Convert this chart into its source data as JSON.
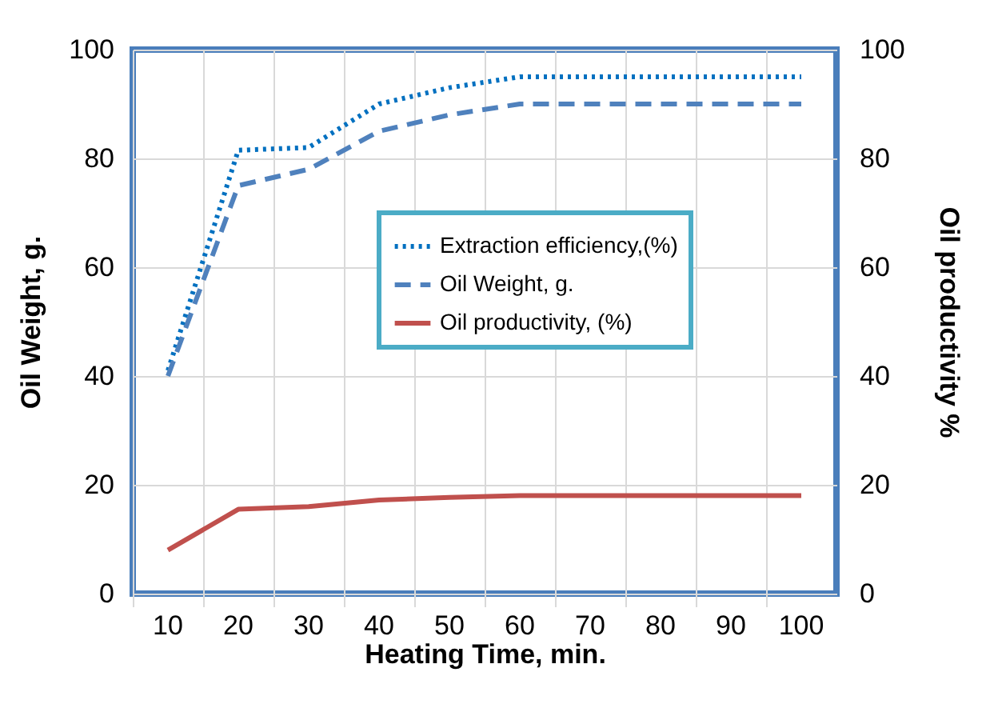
{
  "chart_data": {
    "type": "line",
    "xlabel": "Heating Time, min.",
    "ylabel": "Oil Weight, g.",
    "y2label": "Oil productivity %",
    "categories": [
      "10",
      "20",
      "30",
      "40",
      "50",
      "60",
      "70",
      "80",
      "90",
      "100"
    ],
    "series": [
      {
        "name": "Extraction efficiency,(%)",
        "color": "#0070c0",
        "line_style": "dotted",
        "values": [
          41,
          81.5,
          82,
          90,
          93,
          95,
          95,
          95,
          95,
          95
        ]
      },
      {
        "name": "Oil Weight, g.",
        "color": "#4f81bd",
        "line_style": "dashed",
        "values": [
          40,
          75,
          78,
          85,
          88,
          90,
          90,
          90,
          90,
          90
        ]
      },
      {
        "name": "Oil productivity, (%)",
        "color": "#c0504d",
        "line_style": "solid",
        "axis": "y2",
        "values": [
          8,
          15.5,
          16,
          17.2,
          17.7,
          18,
          18,
          18,
          18,
          18
        ]
      }
    ],
    "ylim": [
      0,
      100
    ],
    "yticks": [
      0,
      20,
      40,
      60,
      80,
      100
    ],
    "y2lim": [
      0,
      100
    ],
    "y2ticks": [
      0,
      20,
      40,
      60,
      80,
      100
    ],
    "grid": true,
    "legend": "right",
    "marker": "none"
  }
}
